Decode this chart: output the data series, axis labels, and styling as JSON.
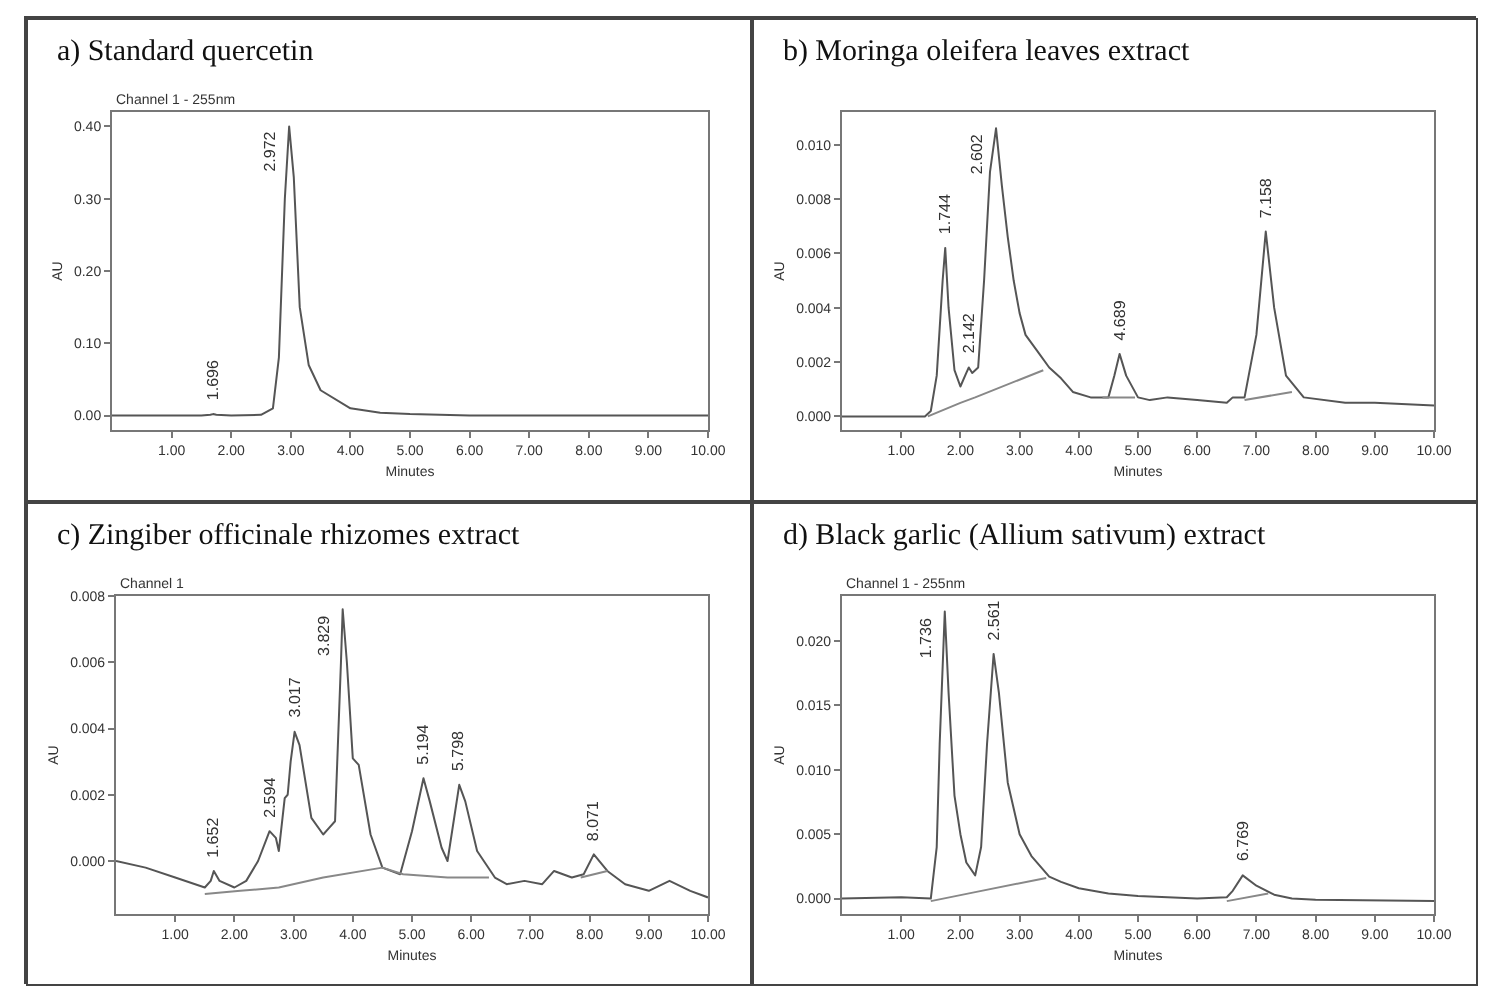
{
  "chart_data": [
    {
      "type": "line",
      "title": "a) Standard quercetin",
      "subtitle": "Channel 1 - 255nm",
      "xlabel": "Minutes",
      "ylabel": "AU",
      "xlim": [
        0,
        10
      ],
      "xticks": [
        {
          "value": 1,
          "label": "1.00"
        },
        {
          "value": 2,
          "label": "2.00"
        },
        {
          "value": 3,
          "label": "3.00"
        },
        {
          "value": 4,
          "label": "4.00"
        },
        {
          "value": 5,
          "label": "5.00"
        },
        {
          "value": 6,
          "label": "6.00"
        },
        {
          "value": 7,
          "label": "7.00"
        },
        {
          "value": 8,
          "label": "8.00"
        },
        {
          "value": 9,
          "label": "9.00"
        },
        {
          "value": 10,
          "label": "10.00"
        }
      ],
      "ylim": [
        -0.02,
        0.42
      ],
      "yticks": [
        {
          "value": 0,
          "label": "0.00"
        },
        {
          "value": 0.1,
          "label": "0.10"
        },
        {
          "value": 0.2,
          "label": "0.20"
        },
        {
          "value": 0.3,
          "label": "0.30"
        },
        {
          "value": 0.4,
          "label": "0.40"
        }
      ],
      "series": [
        {
          "color": "#555555",
          "x": [
            0,
            1.0,
            1.5,
            1.65,
            1.696,
            1.75,
            2.0,
            2.5,
            2.7,
            2.8,
            2.9,
            2.972,
            3.05,
            3.15,
            3.3,
            3.5,
            4.0,
            4.5,
            5.0,
            6.0,
            8.0,
            10.0
          ],
          "values": [
            0,
            0,
            0,
            0.001,
            0.002,
            0.001,
            0,
            0.001,
            0.01,
            0.08,
            0.3,
            0.4,
            0.33,
            0.15,
            0.07,
            0.035,
            0.01,
            0.004,
            0.002,
            0,
            0,
            0
          ]
        }
      ],
      "annotations": [
        {
          "text": "1.696",
          "x": 1.696,
          "y": 0.002
        },
        {
          "text": "2.972",
          "x": 2.972,
          "y": 0.4
        }
      ]
    },
    {
      "type": "line",
      "title": "b) Moringa oleifera leaves extract",
      "xlabel": "Minutes",
      "ylabel": "AU",
      "xlim": [
        0,
        10
      ],
      "xticks": [
        {
          "value": 1,
          "label": "1.00"
        },
        {
          "value": 2,
          "label": "2.00"
        },
        {
          "value": 3,
          "label": "3.00"
        },
        {
          "value": 4,
          "label": "4.00"
        },
        {
          "value": 5,
          "label": "5.00"
        },
        {
          "value": 6,
          "label": "6.00"
        },
        {
          "value": 7,
          "label": "7.00"
        },
        {
          "value": 8,
          "label": "8.00"
        },
        {
          "value": 9,
          "label": "9.00"
        },
        {
          "value": 10,
          "label": "10.00"
        }
      ],
      "ylim": [
        -0.0005,
        0.0112
      ],
      "yticks": [
        {
          "value": 0,
          "label": "0.000"
        },
        {
          "value": 0.002,
          "label": "0.002"
        },
        {
          "value": 0.004,
          "label": "0.004"
        },
        {
          "value": 0.006,
          "label": "0.006"
        },
        {
          "value": 0.008,
          "label": "0.008"
        },
        {
          "value": 0.01,
          "label": "0.010"
        }
      ],
      "series": [
        {
          "color": "#555555",
          "x": [
            0,
            1.0,
            1.4,
            1.5,
            1.6,
            1.7,
            1.744,
            1.8,
            1.9,
            2.0,
            2.1,
            2.142,
            2.2,
            2.3,
            2.4,
            2.5,
            2.602,
            2.7,
            2.8,
            2.9,
            3.0,
            3.1,
            3.3,
            3.5,
            3.7,
            3.9,
            4.2,
            4.5,
            4.6,
            4.689,
            4.8,
            5.0,
            5.2,
            5.5,
            6.0,
            6.5,
            6.6,
            6.8,
            7.0,
            7.158,
            7.3,
            7.5,
            7.8,
            8.5,
            9.0,
            10.0
          ],
          "values": [
            0,
            0,
            0,
            0.0002,
            0.0015,
            0.005,
            0.0062,
            0.004,
            0.0017,
            0.0011,
            0.0016,
            0.0018,
            0.0016,
            0.0018,
            0.005,
            0.009,
            0.0106,
            0.0085,
            0.0066,
            0.005,
            0.0038,
            0.003,
            0.0024,
            0.0018,
            0.0014,
            0.0009,
            0.0007,
            0.0007,
            0.0015,
            0.0023,
            0.0015,
            0.0007,
            0.0006,
            0.0007,
            0.0006,
            0.0005,
            0.0007,
            0.0007,
            0.003,
            0.0068,
            0.004,
            0.0015,
            0.0007,
            0.0005,
            0.0005,
            0.0004
          ]
        },
        {
          "color": "#888888",
          "x": [
            1.45,
            2.0,
            2.25,
            3.4
          ],
          "values": [
            0,
            0.0005,
            0.0007,
            0.0017
          ]
        },
        {
          "color": "#888888",
          "x": [
            4.4,
            4.95
          ],
          "values": [
            0.0007,
            0.0007
          ]
        },
        {
          "color": "#888888",
          "x": [
            6.8,
            7.6
          ],
          "values": [
            0.0006,
            0.0009
          ]
        }
      ],
      "annotations": [
        {
          "text": "1.744",
          "x": 1.744,
          "y": 0.0062
        },
        {
          "text": "2.142",
          "x": 2.142,
          "y": 0.0018
        },
        {
          "text": "2.602",
          "x": 2.602,
          "y": 0.0106
        },
        {
          "text": "4.689",
          "x": 4.689,
          "y": 0.0023
        },
        {
          "text": "7.158",
          "x": 7.158,
          "y": 0.0068
        }
      ]
    },
    {
      "type": "line",
      "title": "c) Zingiber officinale rhizomes extract",
      "subtitle": "Channel 1",
      "xlabel": "Minutes",
      "ylabel": "AU",
      "xlim": [
        0,
        10
      ],
      "xticks": [
        {
          "value": 1,
          "label": "1.00"
        },
        {
          "value": 2,
          "label": "2.00"
        },
        {
          "value": 3,
          "label": "3.00"
        },
        {
          "value": 4,
          "label": "4.00"
        },
        {
          "value": 5,
          "label": "5.00"
        },
        {
          "value": 6,
          "label": "6.00"
        },
        {
          "value": 7,
          "label": "7.00"
        },
        {
          "value": 8,
          "label": "8.00"
        },
        {
          "value": 9,
          "label": "9.00"
        },
        {
          "value": 10,
          "label": "10.00"
        }
      ],
      "ylim": [
        -0.0016,
        0.008
      ],
      "yticks": [
        {
          "value": 0,
          "label": "0.000"
        },
        {
          "value": 0.002,
          "label": "0.002"
        },
        {
          "value": 0.004,
          "label": "0.004"
        },
        {
          "value": 0.006,
          "label": "0.006"
        },
        {
          "value": 0.008,
          "label": "0.008"
        }
      ],
      "series": [
        {
          "color": "#555555",
          "x": [
            0,
            0.5,
            1.0,
            1.5,
            1.6,
            1.652,
            1.75,
            2.0,
            2.2,
            2.4,
            2.594,
            2.7,
            2.75,
            2.85,
            2.9,
            2.95,
            3.017,
            3.1,
            3.3,
            3.5,
            3.6,
            3.7,
            3.8,
            3.829,
            3.9,
            4.0,
            4.1,
            4.3,
            4.5,
            4.8,
            5.0,
            5.194,
            5.3,
            5.5,
            5.6,
            5.798,
            5.9,
            6.1,
            6.4,
            6.6,
            6.9,
            7.2,
            7.4,
            7.7,
            7.9,
            8.071,
            8.3,
            8.6,
            9.0,
            9.35,
            9.7,
            10.0
          ],
          "values": [
            0,
            -0.0002,
            -0.0005,
            -0.0008,
            -0.0006,
            -0.0003,
            -0.0006,
            -0.0008,
            -0.0006,
            0,
            0.0009,
            0.0007,
            0.0003,
            0.0019,
            0.002,
            0.003,
            0.0039,
            0.0035,
            0.0013,
            0.0008,
            0.001,
            0.0012,
            0.006,
            0.0076,
            0.006,
            0.0031,
            0.0029,
            0.0008,
            -0.0002,
            -0.0004,
            0.0009,
            0.0025,
            0.0018,
            0.0004,
            0,
            0.0023,
            0.0018,
            0.0003,
            -0.0005,
            -0.0007,
            -0.0006,
            -0.0007,
            -0.0003,
            -0.0005,
            -0.0004,
            0.0002,
            -0.0003,
            -0.0007,
            -0.0009,
            -0.0006,
            -0.0009,
            -0.0011
          ]
        },
        {
          "color": "#888888",
          "x": [
            1.5,
            2.1,
            2.75,
            3.5,
            4.5,
            4.85,
            5.6,
            6.3
          ],
          "values": [
            -0.001,
            -0.0009,
            -0.0008,
            -0.0005,
            -0.0002,
            -0.0004,
            -0.0005,
            -0.0005
          ]
        },
        {
          "color": "#888888",
          "x": [
            7.85,
            8.3
          ],
          "values": [
            -0.0005,
            -0.0003
          ]
        }
      ],
      "annotations": [
        {
          "text": "1.652",
          "x": 1.652,
          "y": -0.0003
        },
        {
          "text": "2.594",
          "x": 2.594,
          "y": 0.0009
        },
        {
          "text": "3.017",
          "x": 3.017,
          "y": 0.0039
        },
        {
          "text": "3.829",
          "x": 3.829,
          "y": 0.0076
        },
        {
          "text": "5.194",
          "x": 5.194,
          "y": 0.0025
        },
        {
          "text": "5.798",
          "x": 5.798,
          "y": 0.0023
        },
        {
          "text": "8.071",
          "x": 8.071,
          "y": 0.0002
        }
      ]
    },
    {
      "type": "line",
      "title": "d) Black garlic (Allium sativum) extract",
      "subtitle": "Channel 1 - 255nm",
      "xlabel": "Minutes",
      "ylabel": "AU",
      "xlim": [
        0,
        10
      ],
      "xticks": [
        {
          "value": 1,
          "label": "1.00"
        },
        {
          "value": 2,
          "label": "2.00"
        },
        {
          "value": 3,
          "label": "3.00"
        },
        {
          "value": 4,
          "label": "4.00"
        },
        {
          "value": 5,
          "label": "5.00"
        },
        {
          "value": 6,
          "label": "6.00"
        },
        {
          "value": 7,
          "label": "7.00"
        },
        {
          "value": 8,
          "label": "8.00"
        },
        {
          "value": 9,
          "label": "9.00"
        },
        {
          "value": 10,
          "label": "10.00"
        }
      ],
      "ylim": [
        -0.0012,
        0.0235
      ],
      "yticks": [
        {
          "value": 0,
          "label": "0.000"
        },
        {
          "value": 0.005,
          "label": "0.005"
        },
        {
          "value": 0.01,
          "label": "0.010"
        },
        {
          "value": 0.015,
          "label": "0.015"
        },
        {
          "value": 0.02,
          "label": "0.020"
        }
      ],
      "series": [
        {
          "color": "#555555",
          "x": [
            0,
            1.0,
            1.5,
            1.6,
            1.65,
            1.736,
            1.8,
            1.9,
            2.0,
            2.1,
            2.25,
            2.35,
            2.45,
            2.561,
            2.65,
            2.8,
            3.0,
            3.2,
            3.5,
            3.7,
            4.0,
            4.5,
            5.0,
            6.0,
            6.5,
            6.6,
            6.769,
            7.0,
            7.3,
            7.6,
            8.0,
            10.0
          ],
          "values": [
            0,
            0.0001,
            0,
            0.004,
            0.012,
            0.0223,
            0.016,
            0.008,
            0.005,
            0.0028,
            0.0018,
            0.004,
            0.012,
            0.019,
            0.016,
            0.009,
            0.005,
            0.0033,
            0.0017,
            0.0013,
            0.0008,
            0.0004,
            0.0002,
            0,
            0.0001,
            0.0006,
            0.0018,
            0.001,
            0.0003,
            0,
            -0.0001,
            -0.0002
          ]
        },
        {
          "color": "#888888",
          "x": [
            1.5,
            2.25,
            3.45
          ],
          "values": [
            -0.0002,
            0.0005,
            0.0016
          ]
        },
        {
          "color": "#888888",
          "x": [
            6.5,
            7.2
          ],
          "values": [
            -0.0002,
            0.0004
          ]
        }
      ],
      "annotations": [
        {
          "text": "1.736",
          "x": 1.736,
          "y": 0.0223
        },
        {
          "text": "2.561",
          "x": 2.561,
          "y": 0.019
        },
        {
          "text": "6.769",
          "x": 6.769,
          "y": 0.0018
        }
      ]
    }
  ]
}
